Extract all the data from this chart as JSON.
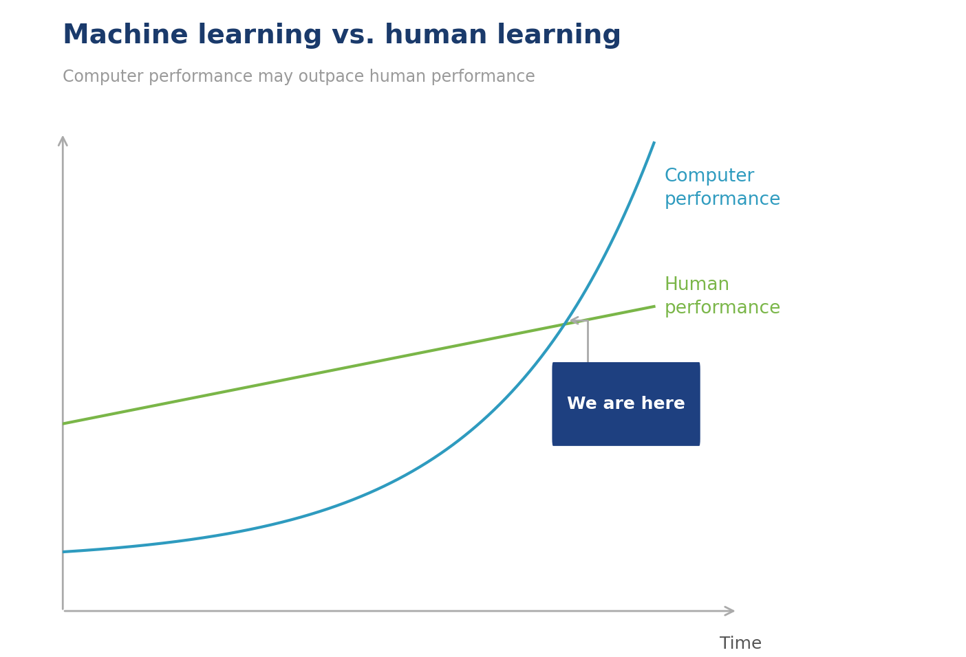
{
  "title": "Machine learning vs. human learning",
  "subtitle": "Computer performance may outpace human performance",
  "title_color": "#1a3a6b",
  "subtitle_color": "#999999",
  "title_fontsize": 28,
  "subtitle_fontsize": 17,
  "background_color": "#ffffff",
  "computer_line_color": "#2e9bbf",
  "human_line_color": "#7ab648",
  "computer_label": "Computer\nperformance",
  "human_label": "Human\nperformance",
  "computer_label_color": "#2e9bbf",
  "human_label_color": "#7ab648",
  "we_are_here_text": "We are here",
  "we_are_here_box_color": "#1e4080",
  "we_are_here_text_color": "#ffffff",
  "axis_color": "#aaaaaa",
  "time_label": "Time",
  "time_label_color": "#555555",
  "annotation_arrow_color": "#aaaaaa",
  "line_width": 3.0,
  "xlim": [
    0,
    10
  ],
  "ylim": [
    0,
    1.0
  ]
}
